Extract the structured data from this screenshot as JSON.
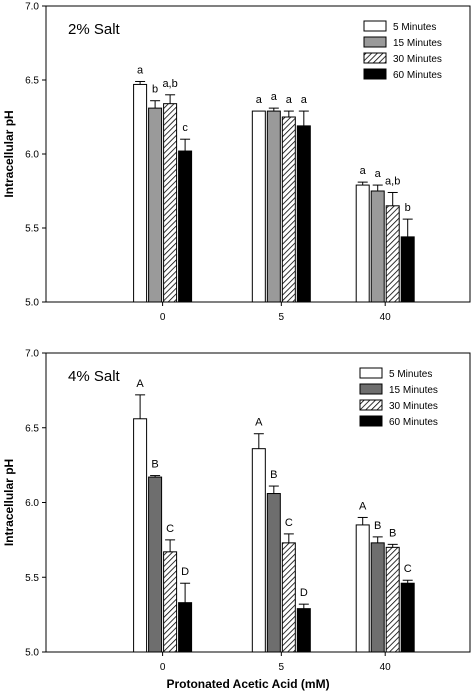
{
  "chart_data": [
    {
      "type": "bar",
      "title": "2% Salt",
      "ylabel": "Intracellular pH",
      "xlabel": "",
      "ylim": [
        5.0,
        7.0
      ],
      "yticks": [
        "5.0",
        "5.5",
        "6.0",
        "6.5",
        "7.0"
      ],
      "categories": [
        "0",
        "5",
        "40"
      ],
      "legend_position": "top-right",
      "series": [
        {
          "name": "5 Minutes",
          "color": "#ffffff",
          "pattern": "none",
          "values": [
            6.47,
            6.29,
            5.79
          ],
          "errors": [
            0.02,
            0.0,
            0.02
          ],
          "labels": [
            "a",
            "a",
            "a"
          ]
        },
        {
          "name": "15 Minutes",
          "color": "#9a9a9a",
          "pattern": "none",
          "values": [
            6.31,
            6.29,
            5.75
          ],
          "errors": [
            0.05,
            0.02,
            0.04
          ],
          "labels": [
            "b",
            "a",
            "a"
          ]
        },
        {
          "name": "30 Minutes",
          "color": "#ffffff",
          "pattern": "hatch",
          "values": [
            6.34,
            6.25,
            5.65
          ],
          "errors": [
            0.06,
            0.04,
            0.09
          ],
          "labels": [
            "a,b",
            "a",
            "a,b"
          ]
        },
        {
          "name": "60 Minutes",
          "color": "#000000",
          "pattern": "none",
          "values": [
            6.02,
            6.19,
            5.44
          ],
          "errors": [
            0.08,
            0.1,
            0.12
          ],
          "labels": [
            "c",
            "a",
            "b"
          ]
        }
      ]
    },
    {
      "type": "bar",
      "title": "4% Salt",
      "ylabel": "Intracellular pH",
      "xlabel": "Protonated Acetic Acid (mM)",
      "ylim": [
        5.0,
        7.0
      ],
      "yticks": [
        "5.0",
        "5.5",
        "6.0",
        "6.5",
        "7.0"
      ],
      "categories": [
        "0",
        "5",
        "40"
      ],
      "legend_position": "top-right",
      "series": [
        {
          "name": "5 Minutes",
          "color": "#ffffff",
          "pattern": "none",
          "values": [
            6.56,
            6.36,
            5.85
          ],
          "errors": [
            0.16,
            0.1,
            0.05
          ],
          "labels": [
            "A",
            "A",
            "A"
          ]
        },
        {
          "name": "15 Minutes",
          "color": "#6e6e6e",
          "pattern": "none",
          "values": [
            6.17,
            6.06,
            5.73
          ],
          "errors": [
            0.01,
            0.05,
            0.04
          ],
          "labels": [
            "B",
            "B",
            "B"
          ]
        },
        {
          "name": "30 Minutes",
          "color": "#ffffff",
          "pattern": "hatch",
          "values": [
            5.67,
            5.73,
            5.7
          ],
          "errors": [
            0.08,
            0.06,
            0.02
          ],
          "labels": [
            "C",
            "C",
            "B"
          ]
        },
        {
          "name": "60 Minutes",
          "color": "#000000",
          "pattern": "none",
          "values": [
            5.33,
            5.29,
            5.46
          ],
          "errors": [
            0.13,
            0.03,
            0.02
          ],
          "labels": [
            "D",
            "D",
            "C"
          ]
        }
      ]
    }
  ]
}
